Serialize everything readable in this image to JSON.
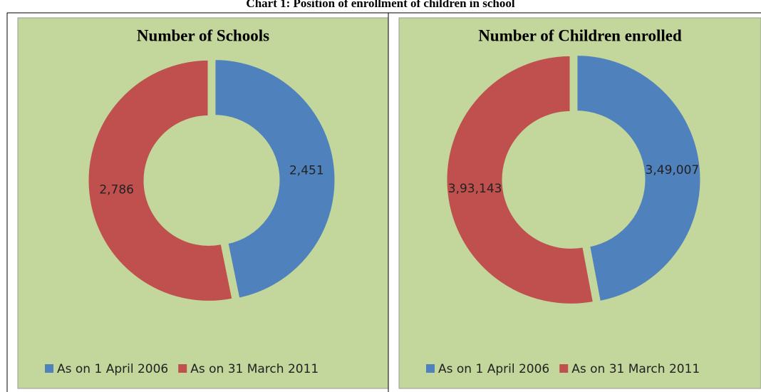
{
  "page_title": "Chart 1: Position of enrollment of children in school",
  "chart_data": [
    {
      "type": "donut",
      "title": "Number of Schools",
      "categories": [
        "As on 1 April 2006",
        "As on 31 March 2011"
      ],
      "values": [
        2451,
        2786
      ],
      "value_labels": [
        "2,451",
        "2,786"
      ],
      "colors": [
        "#4f81bd",
        "#c0504d"
      ],
      "legend": "bottom"
    },
    {
      "type": "donut",
      "title": "Number of Children enrolled",
      "categories": [
        "As on 1 April 2006",
        "As on 31 March 2011"
      ],
      "values": [
        349007,
        393143
      ],
      "value_labels": [
        "3,49,007",
        "3,93,143"
      ],
      "colors": [
        "#4f81bd",
        "#c0504d"
      ],
      "legend": "bottom"
    }
  ]
}
